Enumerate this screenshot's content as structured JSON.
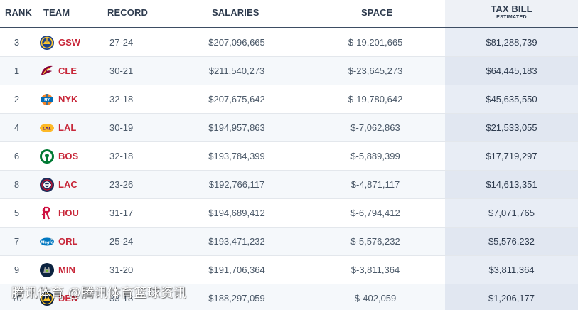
{
  "headers": {
    "rank": "RANK",
    "team": "TEAM",
    "record": "RECORD",
    "salaries": "SALARIES",
    "space": "SPACE",
    "tax_bill": "TAX BILL",
    "tax_bill_sub": "ESTIMATED"
  },
  "rows": [
    {
      "rank": "3",
      "team": "GSW",
      "logo": "warriors-logo-icon",
      "record": "27-24",
      "salaries": "$207,096,665",
      "space": "$-19,201,665",
      "tax": "$81,288,739"
    },
    {
      "rank": "1",
      "team": "CLE",
      "logo": "cavaliers-logo-icon",
      "record": "30-21",
      "salaries": "$211,540,273",
      "space": "$-23,645,273",
      "tax": "$64,445,183"
    },
    {
      "rank": "2",
      "team": "NYK",
      "logo": "knicks-logo-icon",
      "record": "32-18",
      "salaries": "$207,675,642",
      "space": "$-19,780,642",
      "tax": "$45,635,550"
    },
    {
      "rank": "4",
      "team": "LAL",
      "logo": "lakers-logo-icon",
      "record": "30-19",
      "salaries": "$194,957,863",
      "space": "$-7,062,863",
      "tax": "$21,533,055"
    },
    {
      "rank": "6",
      "team": "BOS",
      "logo": "celtics-logo-icon",
      "record": "32-18",
      "salaries": "$193,784,399",
      "space": "$-5,889,399",
      "tax": "$17,719,297"
    },
    {
      "rank": "8",
      "team": "LAC",
      "logo": "clippers-logo-icon",
      "record": "23-26",
      "salaries": "$192,766,117",
      "space": "$-4,871,117",
      "tax": "$14,613,351"
    },
    {
      "rank": "5",
      "team": "HOU",
      "logo": "rockets-logo-icon",
      "record": "31-17",
      "salaries": "$194,689,412",
      "space": "$-6,794,412",
      "tax": "$7,071,765"
    },
    {
      "rank": "7",
      "team": "ORL",
      "logo": "magic-logo-icon",
      "record": "25-24",
      "salaries": "$193,471,232",
      "space": "$-5,576,232",
      "tax": "$5,576,232"
    },
    {
      "rank": "9",
      "team": "MIN",
      "logo": "timberwolves-logo-icon",
      "record": "31-20",
      "salaries": "$191,706,364",
      "space": "$-3,811,364",
      "tax": "$3,811,364"
    },
    {
      "rank": "10",
      "team": "DEN",
      "logo": "nuggets-logo-icon",
      "record": "33-18",
      "salaries": "$188,297,059",
      "space": "$-402,059",
      "tax": "$1,206,177"
    }
  ],
  "watermark": "腾讯体育 @腾讯体育篮球资讯",
  "colors": {
    "team_abbr": "#c8283a",
    "header_rule": "#3d4d63",
    "tax_column_bg": "#e8edf5",
    "row_alt_bg": "#f5f8fb"
  }
}
